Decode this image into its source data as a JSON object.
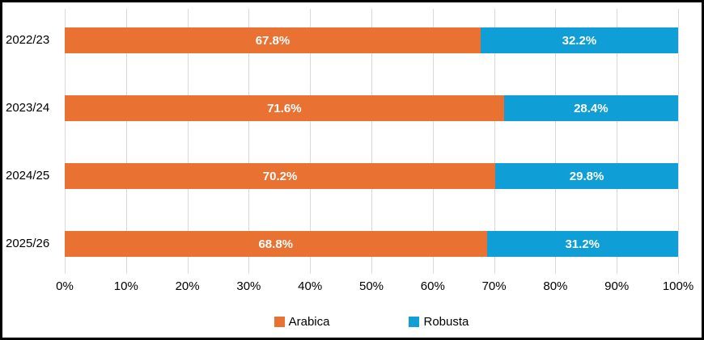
{
  "chart_data": {
    "type": "bar",
    "orientation": "horizontal",
    "stacked": true,
    "unit": "percent",
    "categories": [
      "2022/23",
      "2023/24",
      "2024/25",
      "2025/26"
    ],
    "series": [
      {
        "name": "Arabica",
        "color": "#E97132",
        "values": [
          67.8,
          71.6,
          70.2,
          68.8
        ],
        "labels": [
          "67.8%",
          "71.6%",
          "70.2%",
          "68.8%"
        ]
      },
      {
        "name": "Robusta",
        "color": "#0F9ED5",
        "values": [
          32.2,
          28.4,
          29.8,
          31.2
        ],
        "labels": [
          "32.2%",
          "28.4%",
          "29.8%",
          "31.2%"
        ]
      }
    ],
    "x_ticks": [
      "0%",
      "10%",
      "20%",
      "30%",
      "40%",
      "50%",
      "60%",
      "70%",
      "80%",
      "90%",
      "100%"
    ],
    "xlim": [
      0,
      100
    ],
    "grid": true,
    "gridline_color": "#D9D9D9",
    "legend_position": "bottom",
    "data_label_color": "#FFFFFF",
    "axis_text_color": "#000000",
    "background": "#FFFFFF",
    "frame_border_color": "#000000"
  }
}
